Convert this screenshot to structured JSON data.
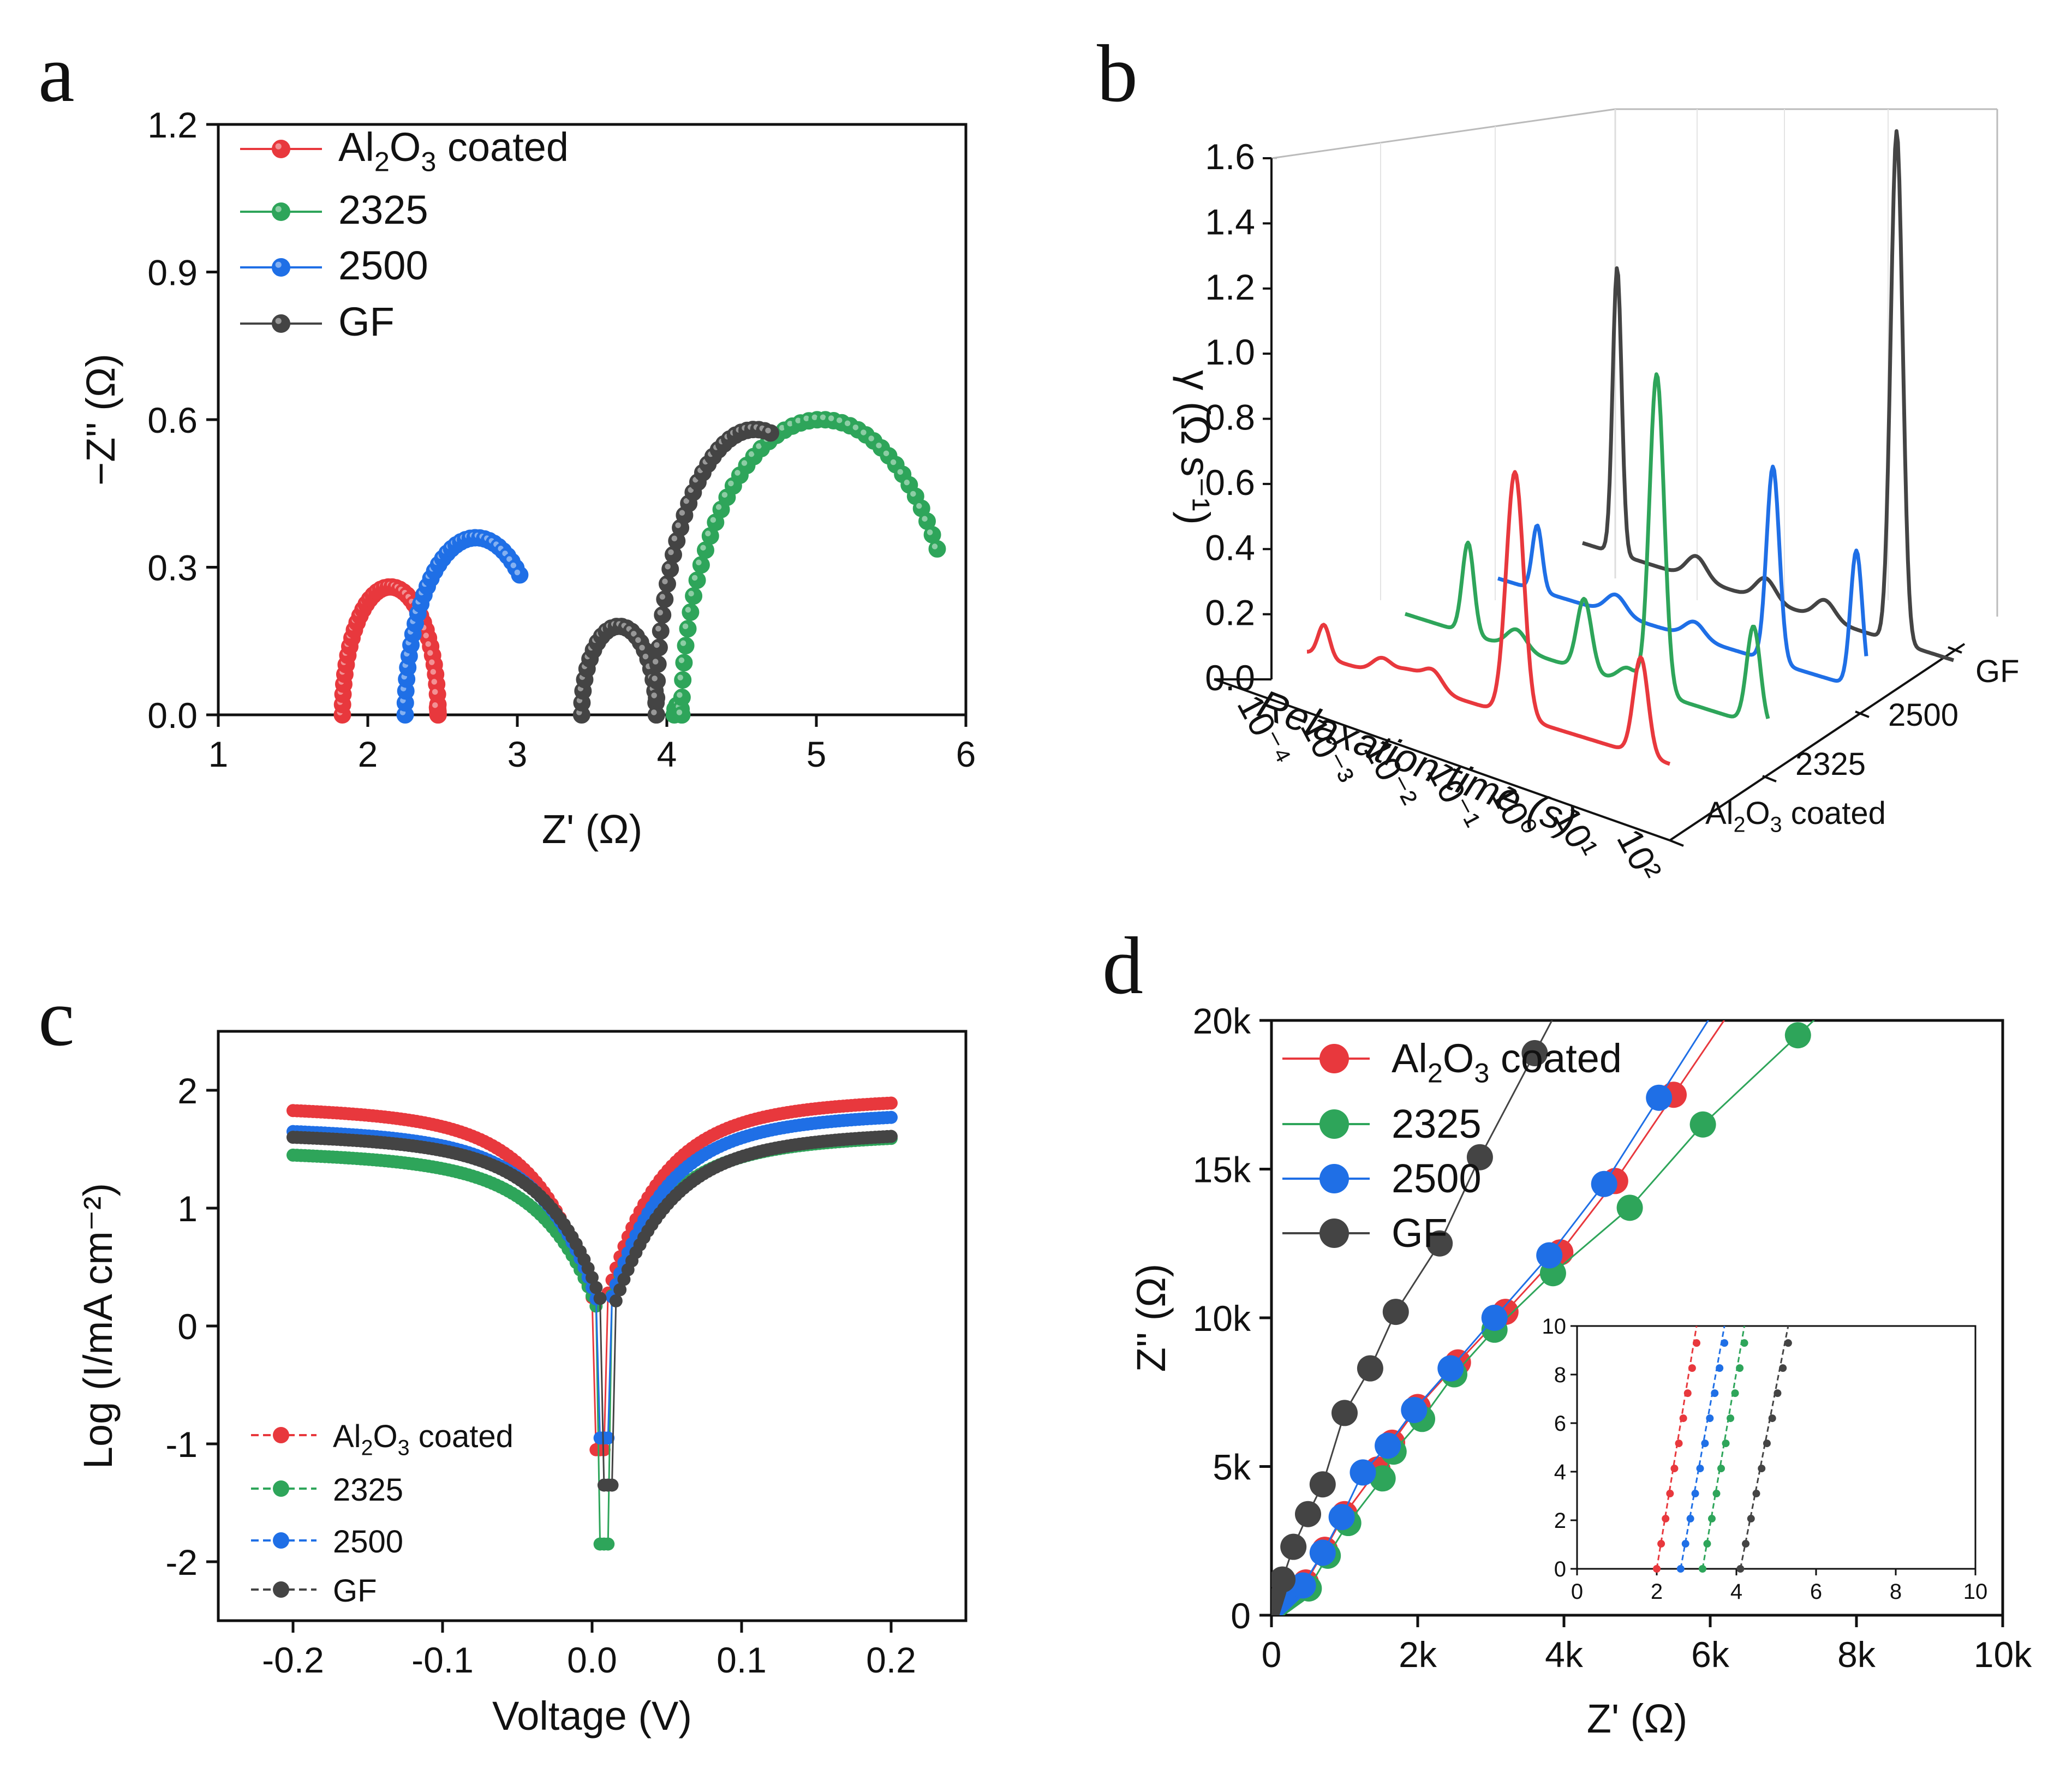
{
  "colors": {
    "red": "#e8383d",
    "green": "#2ea55a",
    "blue": "#1f6fe6",
    "black": "#444444",
    "axis": "#111111"
  },
  "legend": [
    "Al2O3 coated",
    "2325",
    "2500",
    "GF"
  ],
  "chart_data": [
    {
      "panel": "a",
      "type": "scatter",
      "xlabel": "Z' (Ω)",
      "ylabel": "−Z'' (Ω)",
      "xlim": [
        1,
        6
      ],
      "ylim": [
        0,
        1.2
      ],
      "xticks": [
        1,
        2,
        3,
        4,
        5,
        6
      ],
      "yticks": [
        0.0,
        0.3,
        0.6,
        0.9,
        1.2
      ],
      "xtick_labels": [
        "1",
        "2",
        "3",
        "4",
        "5",
        "6"
      ],
      "ytick_labels": [
        "0.0",
        "0.3",
        "0.6",
        "0.9",
        "1.2"
      ],
      "series": [
        {
          "name": "Al2O3 coated",
          "color": "red",
          "arcs": [
            [
              1.83,
              2.47,
              0.26,
              0.0,
              1.0,
              40
            ],
            [
              2.47,
              2.36,
              0.04,
              0.0,
              0.12,
              6
            ]
          ]
        },
        {
          "name": "2325",
          "color": "green",
          "arcs": [
            [
              4.05,
              4.1,
              0.02,
              0.0,
              1.0,
              6
            ],
            [
              4.1,
              5.97,
              0.6,
              0.0,
              0.81,
              44
            ]
          ]
        },
        {
          "name": "2500",
          "color": "blue",
          "arcs": [
            [
              2.25,
              3.2,
              0.36,
              0.0,
              0.71,
              34
            ]
          ]
        },
        {
          "name": "GF",
          "color": "black",
          "arcs": [
            [
              3.43,
              3.93,
              0.18,
              0.0,
              1.0,
              24
            ],
            [
              3.93,
              5.25,
              0.58,
              0.0,
              0.55,
              30
            ]
          ]
        }
      ]
    },
    {
      "panel": "b",
      "type": "line",
      "ylabel": "γ (Ω s⁻¹)",
      "xlabel": "Relaxation time (s)",
      "ylim": [
        0.0,
        1.6
      ],
      "yticks": [
        0.0,
        0.2,
        0.4,
        0.6,
        0.8,
        1.0,
        1.2,
        1.4,
        1.6
      ],
      "ytick_labels": [
        "0.0",
        "0.2",
        "0.4",
        "0.6",
        "0.8",
        "1.0",
        "1.2",
        "1.4",
        "1.6"
      ],
      "xtick_labels": [
        "10⁻⁴",
        "10⁻³",
        "10⁻²",
        "10⁻¹",
        "10⁰",
        "10¹",
        "10²"
      ],
      "depth_labels": [
        "Al2O3 coated",
        "2325",
        "2500",
        "GF"
      ],
      "series": [
        {
          "name": "Al2O3 coated",
          "color": "red",
          "peaks": [
            [
              0.35,
              0.1,
              0.12
            ],
            [
              1.55,
              0.05,
              0.2
            ],
            [
              2.1,
              0.04,
              0.25
            ],
            [
              2.6,
              0.06,
              0.2
            ],
            [
              4.3,
              0.75,
              0.18
            ],
            [
              6.9,
              0.3,
              0.15
            ]
          ]
        },
        {
          "name": "2325",
          "color": "green",
          "peaks": [
            [
              1.3,
              0.28,
              0.12
            ],
            [
              2.3,
              0.06,
              0.2
            ],
            [
              3.7,
              0.22,
              0.15
            ],
            [
              4.6,
              0.05,
              0.2
            ],
            [
              5.2,
              0.98,
              0.15
            ],
            [
              7.2,
              0.3,
              0.14
            ]
          ]
        },
        {
          "name": "2500",
          "color": "blue",
          "peaks": [
            [
              0.8,
              0.2,
              0.1
            ],
            [
              2.4,
              0.06,
              0.2
            ],
            [
              4.0,
              0.05,
              0.2
            ],
            [
              5.6,
              0.6,
              0.13
            ],
            [
              7.3,
              0.42,
              0.12
            ]
          ]
        },
        {
          "name": "GF",
          "color": "black",
          "peaks": [
            [
              0.7,
              0.88,
              0.09
            ],
            [
              2.3,
              0.07,
              0.2
            ],
            [
              3.7,
              0.07,
              0.2
            ],
            [
              4.9,
              0.06,
              0.2
            ],
            [
              6.35,
              1.57,
              0.12
            ]
          ]
        }
      ]
    },
    {
      "panel": "c",
      "type": "scatter",
      "xlabel": "Voltage (V)",
      "ylabel": "Log (I/mA cm⁻²)",
      "xlim": [
        -0.25,
        0.25
      ],
      "ylim": [
        -2.5,
        2.5
      ],
      "xticks": [
        -0.2,
        -0.1,
        0.0,
        0.1,
        0.2
      ],
      "yticks": [
        -2,
        -1,
        0,
        1,
        2
      ],
      "xtick_labels": [
        "-0.2",
        "-0.1",
        "0.0",
        "0.1",
        "0.2"
      ],
      "ytick_labels": [
        "-2",
        "-1",
        "0",
        "1",
        "2"
      ],
      "series": [
        {
          "name": "Al2O3 coated",
          "color": "red",
          "v0": 0.005,
          "left": 1.83,
          "right": 1.9,
          "min": -1.05
        },
        {
          "name": "2325",
          "color": "green",
          "v0": 0.007,
          "left": 1.45,
          "right": 1.6,
          "min": -1.85
        },
        {
          "name": "2500",
          "color": "blue",
          "v0": 0.008,
          "left": 1.65,
          "right": 1.78,
          "min": -0.95
        },
        {
          "name": "GF",
          "color": "black",
          "v0": 0.011,
          "left": 1.6,
          "right": 1.62,
          "min": -1.35
        }
      ]
    },
    {
      "panel": "d",
      "type": "scatter",
      "xlabel": "Z' (Ω)",
      "ylabel": "Z'' (Ω)",
      "xlim": [
        0,
        10000
      ],
      "ylim": [
        0,
        20000
      ],
      "xticks": [
        0,
        2000,
        4000,
        6000,
        8000,
        10000
      ],
      "yticks": [
        0,
        5000,
        10000,
        15000,
        20000
      ],
      "xtick_labels": [
        "0",
        "2k",
        "4k",
        "6k",
        "8k",
        "10k"
      ],
      "ytick_labels": [
        "0",
        "5k",
        "10k",
        "15k",
        "20k"
      ],
      "series": [
        {
          "name": "Al2O3 coated",
          "color": "red",
          "points": [
            [
              470,
              1100
            ],
            [
              730,
              2200
            ],
            [
              1000,
              3400
            ],
            [
              1450,
              4900
            ],
            [
              1650,
              5800
            ],
            [
              2000,
              7000
            ],
            [
              2550,
              8500
            ],
            [
              3200,
              10200
            ],
            [
              3950,
              12200
            ],
            [
              4700,
              14600
            ],
            [
              5500,
              17500
            ]
          ]
        },
        {
          "name": "2325",
          "color": "green",
          "points": [
            [
              510,
              900
            ],
            [
              770,
              2000
            ],
            [
              1050,
              3100
            ],
            [
              1520,
              4600
            ],
            [
              1670,
              5500
            ],
            [
              2060,
              6600
            ],
            [
              2500,
              8100
            ],
            [
              3050,
              9600
            ],
            [
              3850,
              11500
            ],
            [
              4900,
              13700
            ],
            [
              5900,
              16500
            ],
            [
              7200,
              19500
            ]
          ]
        },
        {
          "name": "2500",
          "color": "blue",
          "points": [
            [
              430,
              1000
            ],
            [
              700,
              2100
            ],
            [
              960,
              3300
            ],
            [
              1250,
              4800
            ],
            [
              1590,
              5700
            ],
            [
              1950,
              6900
            ],
            [
              2450,
              8300
            ],
            [
              3050,
              10000
            ],
            [
              3800,
              12100
            ],
            [
              4550,
              14500
            ],
            [
              5300,
              17400
            ]
          ]
        },
        {
          "name": "GF",
          "color": "black",
          "points": [
            [
              150,
              1200
            ],
            [
              300,
              2300
            ],
            [
              500,
              3400
            ],
            [
              700,
              4400
            ],
            [
              1000,
              6800
            ],
            [
              1350,
              8300
            ],
            [
              1700,
              10200
            ],
            [
              2300,
              12500
            ],
            [
              2850,
              15400
            ],
            [
              3600,
              18900
            ]
          ]
        }
      ],
      "inset": {
        "xlim": [
          0,
          10
        ],
        "ylim": [
          0,
          10
        ],
        "xticks": [
          0,
          2,
          4,
          6,
          8,
          10
        ],
        "yticks": [
          0,
          2,
          4,
          6,
          8,
          10
        ],
        "tick_labels": [
          "0",
          "2",
          "4",
          "6",
          "8",
          "10"
        ],
        "series": [
          {
            "name": "Al2O3 coated",
            "color": "red",
            "x0": 2.0,
            "x1": 3.0
          },
          {
            "name": "2325",
            "color": "green",
            "x0": 3.15,
            "x1": 4.2
          },
          {
            "name": "2500",
            "color": "blue",
            "x0": 2.6,
            "x1": 3.7
          },
          {
            "name": "GF",
            "color": "black",
            "x0": 4.1,
            "x1": 5.3
          }
        ]
      }
    }
  ]
}
